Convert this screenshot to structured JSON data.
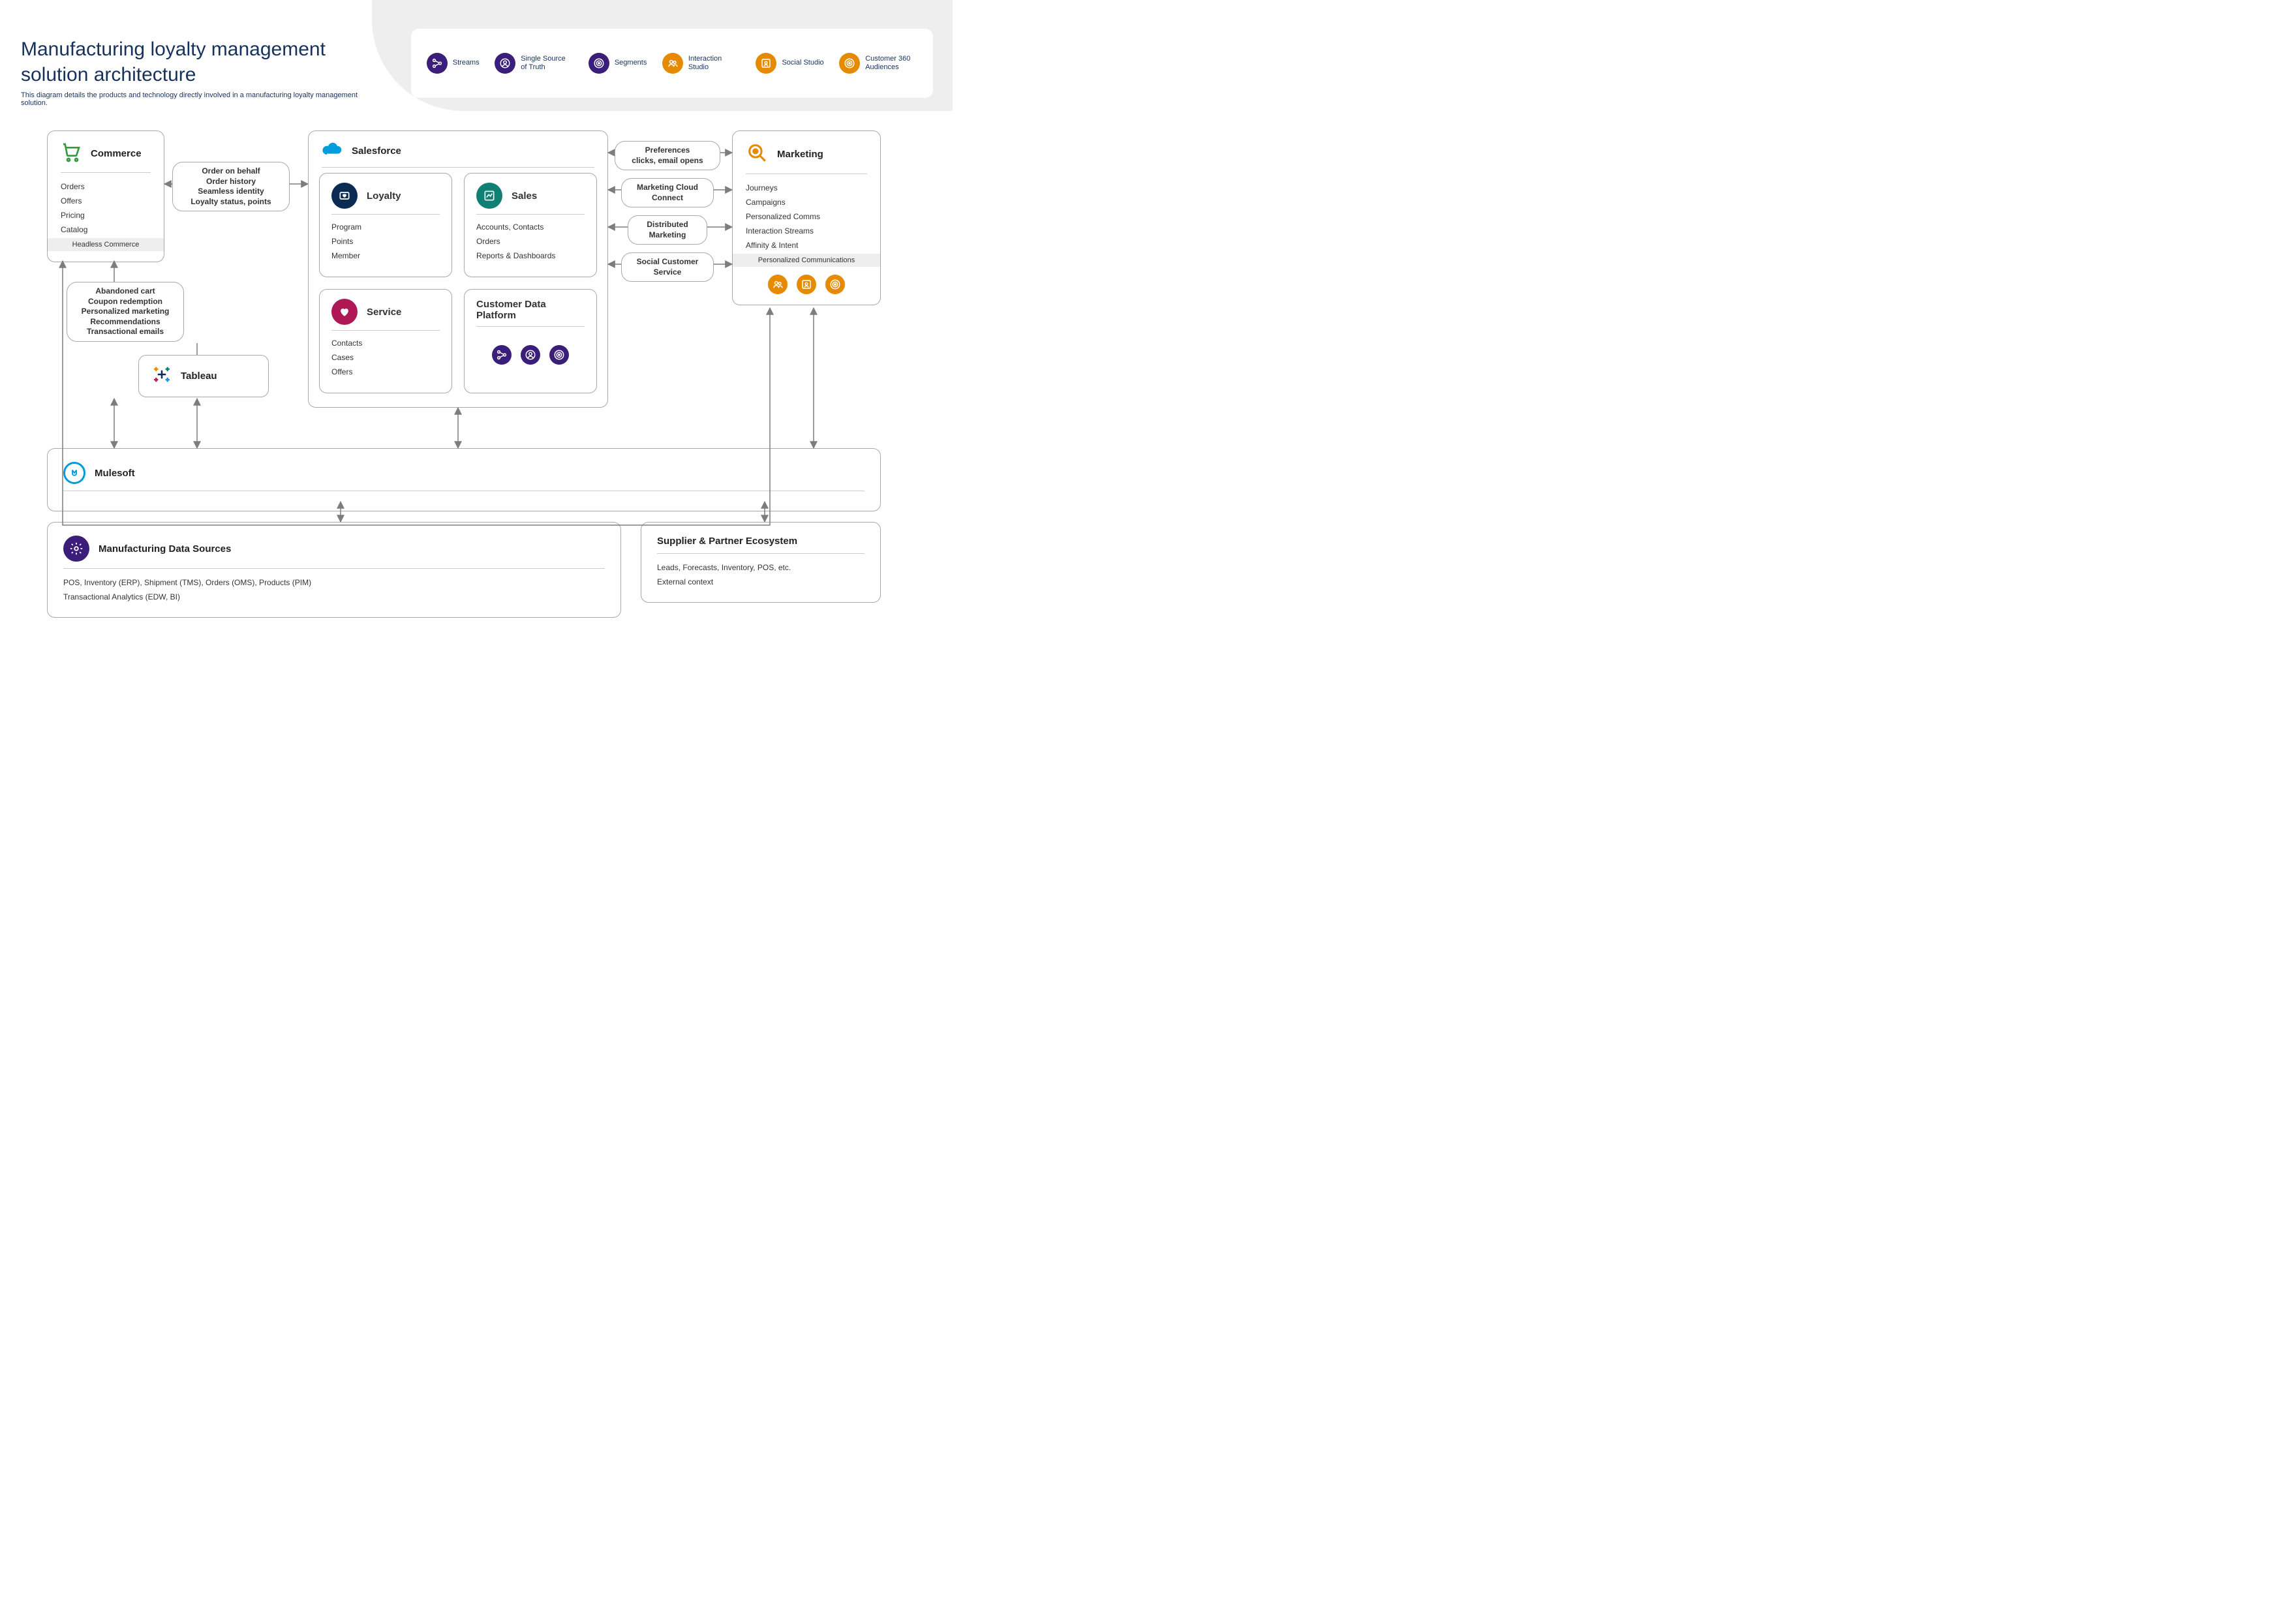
{
  "title": "Manufacturing loyalty management solution architecture",
  "subtitle": "This diagram details the products and technology directly involved in a manufacturing loyalty management solution.",
  "colors": {
    "purple": "#3a1e7a",
    "orange": "#e68a00",
    "navy": "#0b2b52",
    "teal": "#108074",
    "crimson": "#ae1857",
    "blue": "#009cdb",
    "green": "#2e9d3a",
    "textNavy": "#16325c",
    "greyBg": "#eeeeee",
    "border": "#a8a8a8"
  },
  "legend": [
    {
      "label": "Streams",
      "color": "purple",
      "icon": "streams"
    },
    {
      "label": "Single Source of Truth",
      "color": "purple",
      "icon": "person"
    },
    {
      "label": "Segments",
      "color": "purple",
      "icon": "target"
    },
    {
      "label": "Interaction Studio",
      "color": "orange",
      "icon": "people"
    },
    {
      "label": "Social Studio",
      "color": "orange",
      "icon": "frame"
    },
    {
      "label": "Customer 360 Audiences",
      "color": "orange",
      "icon": "target"
    }
  ],
  "commerce": {
    "title": "Commerce",
    "items": [
      "Orders",
      "Offers",
      "Pricing",
      "Catalog"
    ],
    "footer": "Headless Commerce"
  },
  "tableau": {
    "title": "Tableau"
  },
  "salesforce": {
    "title": "Salesforce",
    "loyalty": {
      "title": "Loyalty",
      "items": [
        "Program",
        "Points",
        "Member"
      ],
      "color": "navy",
      "icon": "heart-box"
    },
    "sales": {
      "title": "Sales",
      "items": [
        "Accounts, Contacts",
        "Orders",
        "Reports & Dashboards"
      ],
      "color": "teal",
      "icon": "chart"
    },
    "service": {
      "title": "Service",
      "items": [
        "Contacts",
        "Cases",
        "Offers"
      ],
      "color": "crimson",
      "icon": "heart"
    },
    "cdp": {
      "title": "Customer Data Platform",
      "icons": [
        "streams",
        "person",
        "target"
      ],
      "iconColor": "purple"
    }
  },
  "marketing": {
    "title": "Marketing",
    "items": [
      "Journeys",
      "Campaigns",
      "Personalized Comms",
      "Interaction Streams",
      "Affinity & Intent"
    ],
    "footer": "Personalized Communications",
    "icons": [
      "people",
      "frame",
      "target"
    ],
    "iconColor": "orange"
  },
  "mulesoft": {
    "title": "Mulesoft"
  },
  "mfg": {
    "title": "Manufacturing Data Sources",
    "lines": [
      "POS, Inventory (ERP), Shipment (TMS), Orders (OMS), Products (PIM)",
      "Transactional Analytics (EDW, BI)"
    ]
  },
  "supplier": {
    "title": "Supplier & Partner Ecosystem",
    "lines": [
      "Leads, Forecasts, Inventory, POS, etc.",
      "External context"
    ]
  },
  "edgeLabels": {
    "commerce_sf": [
      "Order on behalf",
      "Order history",
      "Seamless identity",
      "Loyalty status, points"
    ],
    "commerce_mkt": [
      "Abandoned cart",
      "Coupon redemption",
      "Personalized marketing",
      "Recommendations",
      "Transactional emails"
    ],
    "sf_mkt": [
      [
        "Preferences",
        "clicks, email opens"
      ],
      [
        "Marketing Cloud",
        "Connect"
      ],
      [
        "Distributed",
        "Marketing"
      ],
      [
        "Social Customer",
        "Service"
      ]
    ]
  }
}
